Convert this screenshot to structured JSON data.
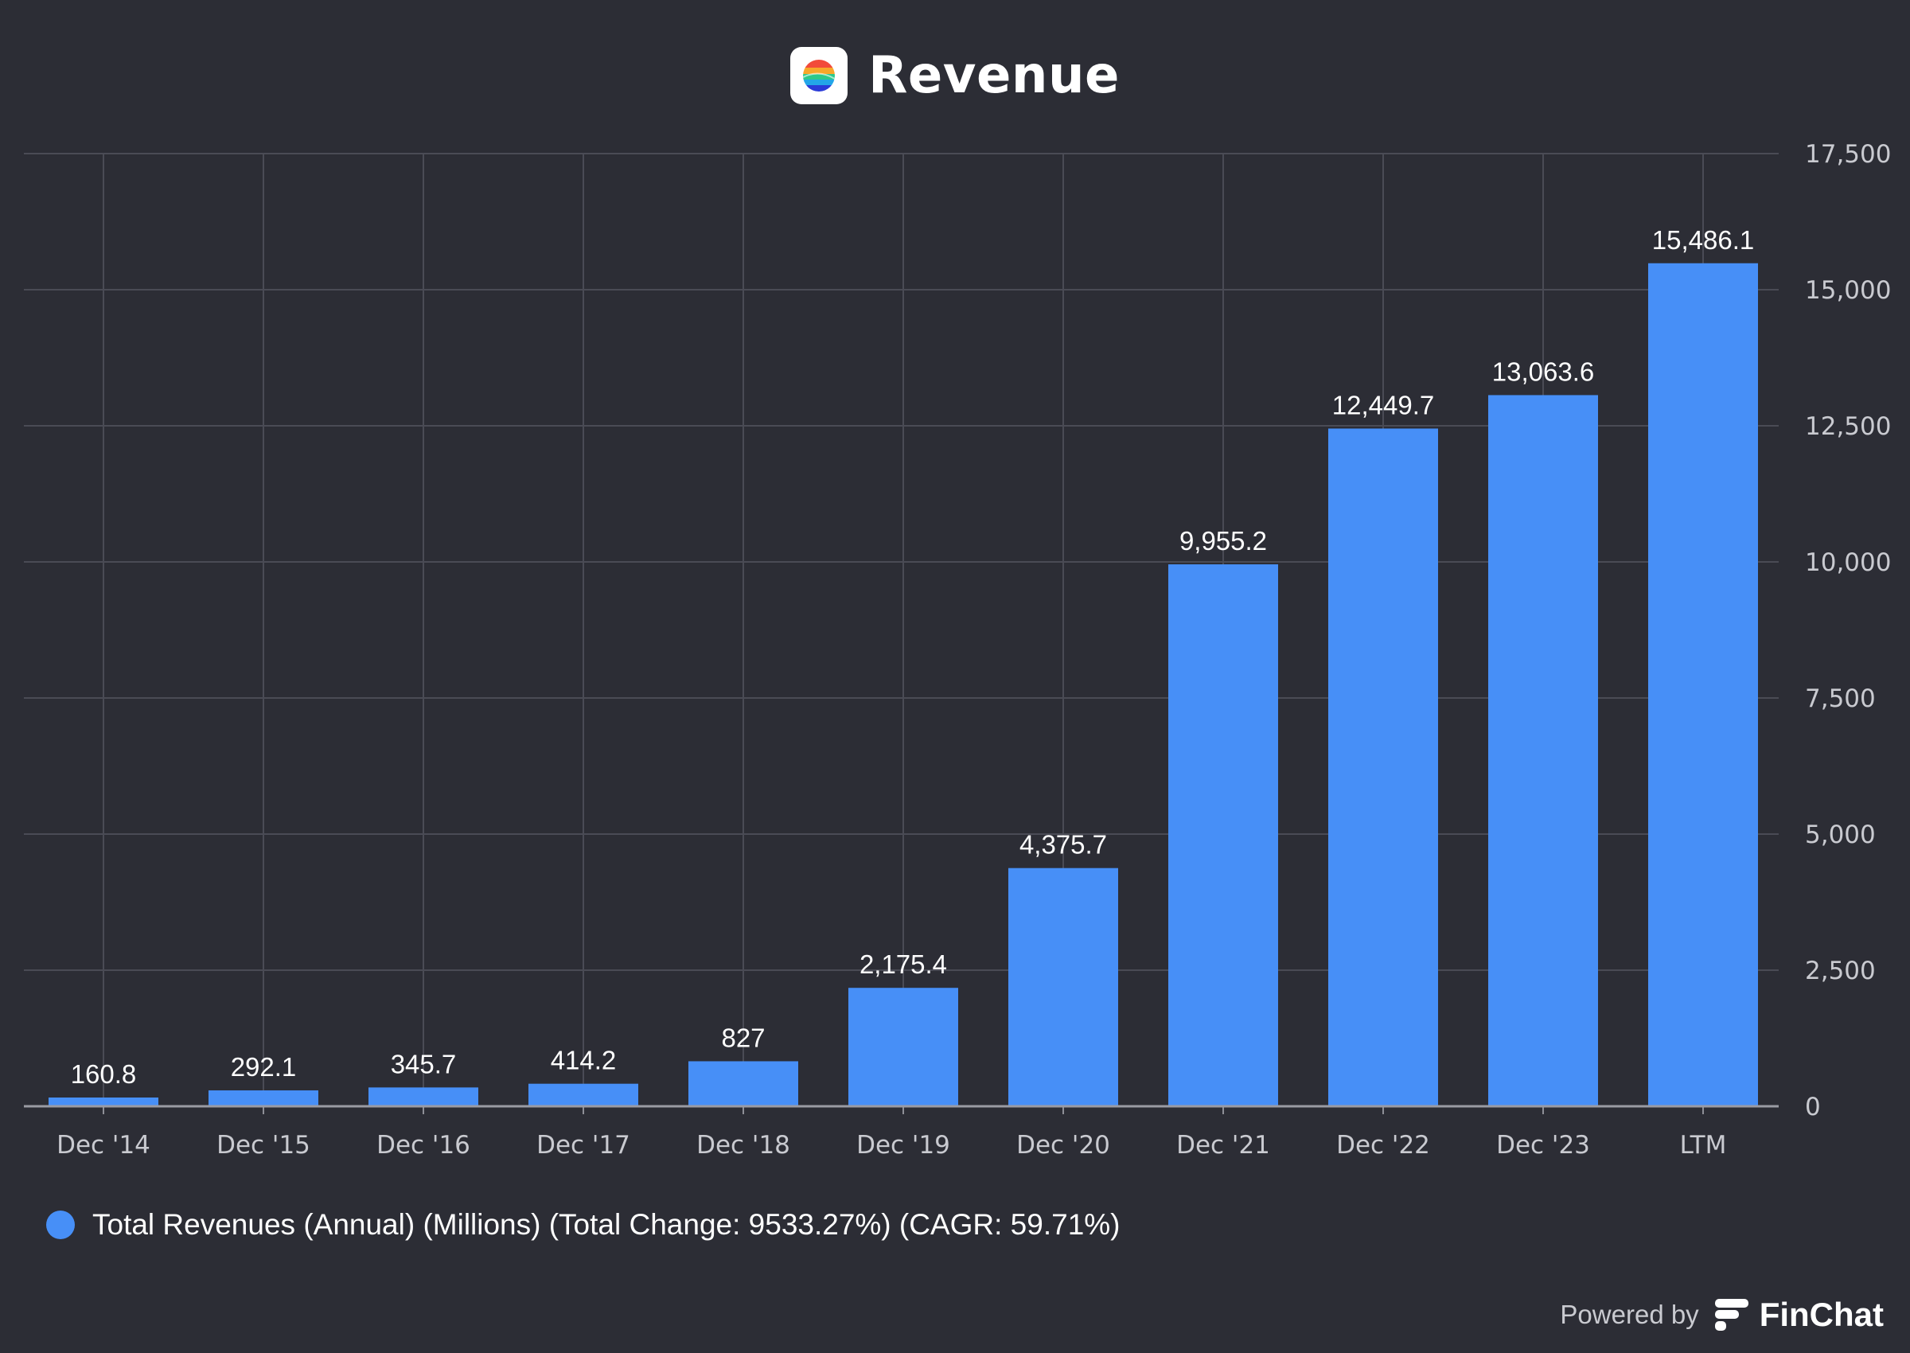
{
  "header": {
    "title": "Revenue",
    "logo_icon": "colorful-globe-icon"
  },
  "chart_data": {
    "type": "bar",
    "categories": [
      "Dec '14",
      "Dec '15",
      "Dec '16",
      "Dec '17",
      "Dec '18",
      "Dec '19",
      "Dec '20",
      "Dec '21",
      "Dec '22",
      "Dec '23",
      "LTM"
    ],
    "series": [
      {
        "name": "Total Revenues (Annual) (Millions) (Total Change: 9533.27%) (CAGR: 59.71%)",
        "color": "#478ff7",
        "values": [
          160.8,
          292.1,
          345.7,
          414.2,
          827,
          2175.4,
          4375.7,
          9955.2,
          12449.7,
          13063.6,
          15486.1
        ],
        "labels": [
          "160.8",
          "292.1",
          "345.7",
          "414.2",
          "827",
          "2,175.4",
          "4,375.7",
          "9,955.2",
          "12,449.7",
          "13,063.6",
          "15,486.1"
        ]
      }
    ],
    "y_ticks": [
      0,
      2500,
      5000,
      7500,
      10000,
      12500,
      15000,
      17500
    ],
    "y_tick_labels": [
      "0",
      "2,500",
      "5,000",
      "7,500",
      "10,000",
      "12,500",
      "15,000",
      "17,500"
    ],
    "ylim": [
      0,
      17500
    ],
    "y_axis_side": "right",
    "grid": true,
    "legend_position": "bottom-left"
  },
  "legend": {
    "label": "Total Revenues (Annual) (Millions) (Total Change: 9533.27%) (CAGR: 59.71%)",
    "color": "#478ff7"
  },
  "footer": {
    "powered_by": "Powered by",
    "brand": "FinChat",
    "brand_icon": "finchat-logo-icon"
  },
  "colors": {
    "background": "#2c2d35",
    "bar": "#478ff7",
    "grid": "#4a4b55",
    "axis_text": "#c9cad0"
  }
}
